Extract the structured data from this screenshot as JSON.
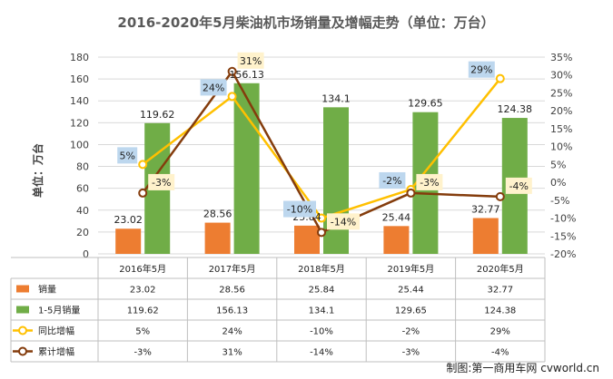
{
  "chart_data": {
    "type": "bar",
    "title": "2016-2020年5月柴油机市场销量及增幅走势（单位：万台）",
    "ylabel": "单位：万台",
    "ylim": [
      0,
      180
    ],
    "y_ticks": [
      0,
      20,
      40,
      60,
      80,
      100,
      120,
      140,
      160,
      180
    ],
    "y2lim": [
      -0.2,
      0.35
    ],
    "y2_ticks": [
      "-20%",
      "-15%",
      "-10%",
      "-5%",
      "0%",
      "5%",
      "10%",
      "15%",
      "20%",
      "25%",
      "30%",
      "35%"
    ],
    "categories": [
      "2016年5月",
      "2017年5月",
      "2018年5月",
      "2019年5月",
      "2020年5月"
    ],
    "series": [
      {
        "name": "销量",
        "kind": "bar",
        "axis": "left",
        "color": "#ED7D31",
        "values": [
          23.02,
          28.56,
          25.84,
          25.44,
          32.77
        ],
        "labels": [
          "23.02",
          "28.56",
          "25.84",
          "25.44",
          "32.77"
        ]
      },
      {
        "name": "1-5月销量",
        "kind": "bar",
        "axis": "left",
        "color": "#70AD47",
        "values": [
          119.62,
          156.13,
          134.1,
          129.65,
          124.38
        ],
        "labels": [
          "119.62",
          "156.13",
          "134.1",
          "129.65",
          "124.38"
        ]
      },
      {
        "name": "同比增幅",
        "kind": "line",
        "axis": "right",
        "color": "#FFC000",
        "values": [
          0.05,
          0.24,
          -0.1,
          -0.02,
          0.29
        ],
        "labels": [
          "5%",
          "24%",
          "-10%",
          "-2%",
          "29%"
        ]
      },
      {
        "name": "累计增幅",
        "kind": "line",
        "axis": "right",
        "color": "#843C0C",
        "values": [
          -0.03,
          0.31,
          -0.14,
          -0.03,
          -0.04
        ],
        "labels": [
          "-3%",
          "31%",
          "-14%",
          "-3%",
          "-4%"
        ]
      }
    ],
    "table": true,
    "grid": true
  },
  "credit": "制图:第一商用车网 cvworld.cn"
}
